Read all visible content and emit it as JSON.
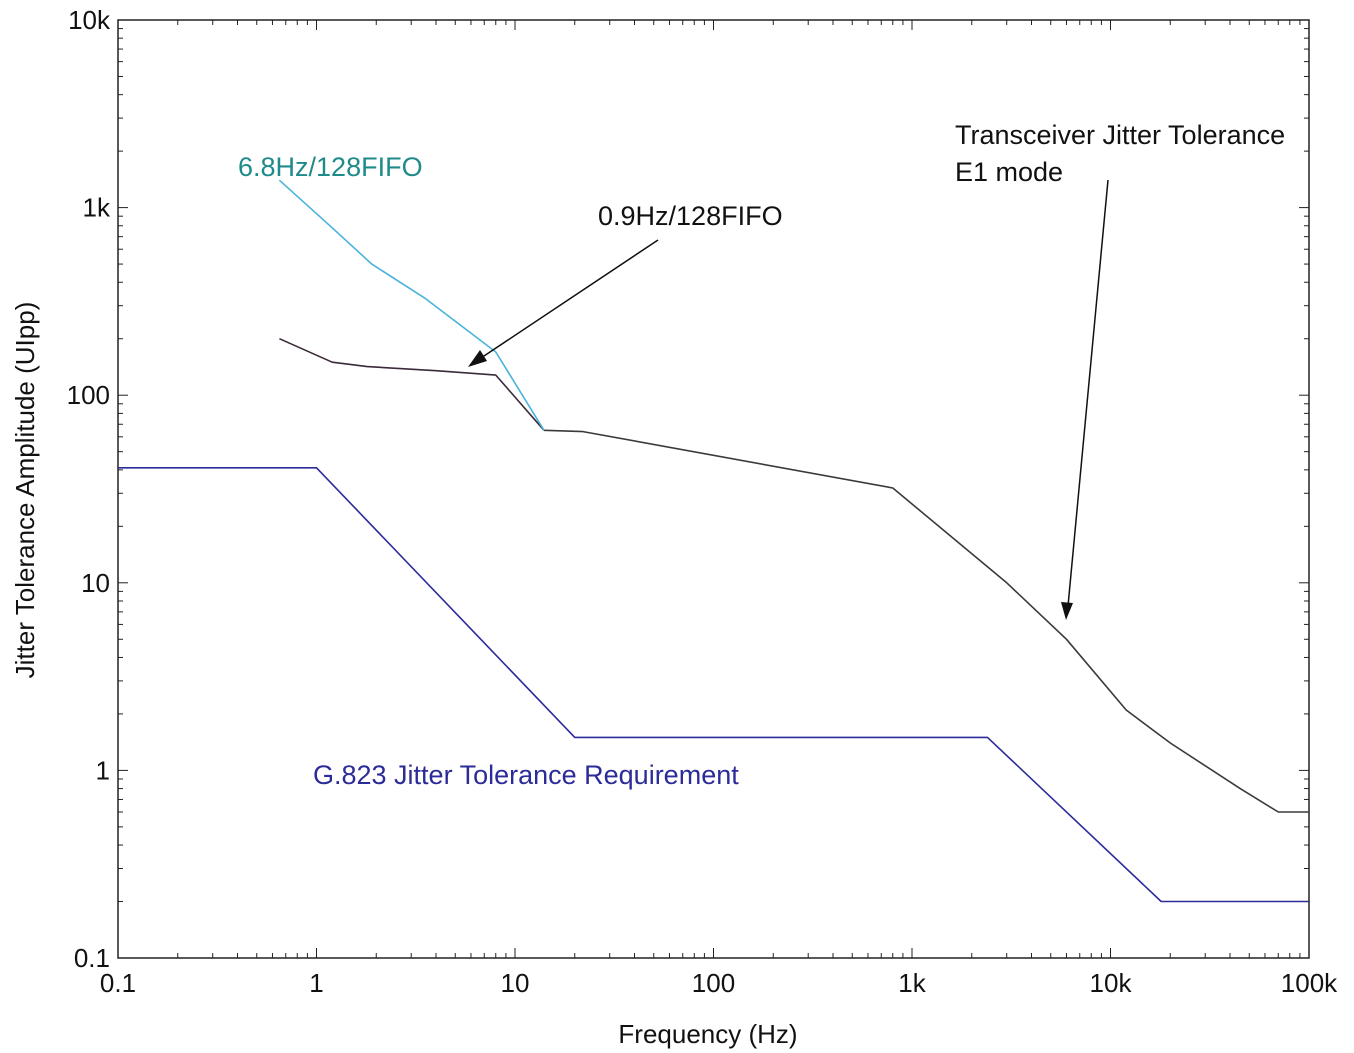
{
  "chart_data": {
    "type": "line",
    "title": "",
    "xlabel": "Frequency (Hz)",
    "ylabel": "Jitter Tolerance Amplitude (UIpp)",
    "x_scale": "log",
    "y_scale": "log",
    "xlim": [
      0.1,
      100000
    ],
    "ylim": [
      0.1,
      10000
    ],
    "x_ticks": [
      {
        "value": 0.1,
        "label": "0.1"
      },
      {
        "value": 1,
        "label": "1"
      },
      {
        "value": 10,
        "label": "10"
      },
      {
        "value": 100,
        "label": "100"
      },
      {
        "value": 1000,
        "label": "1k"
      },
      {
        "value": 10000,
        "label": "10k"
      },
      {
        "value": 100000,
        "label": "100k"
      }
    ],
    "y_ticks": [
      {
        "value": 0.1,
        "label": "0.1"
      },
      {
        "value": 1,
        "label": "1"
      },
      {
        "value": 10,
        "label": "10"
      },
      {
        "value": 100,
        "label": "100"
      },
      {
        "value": 1000,
        "label": "1k"
      },
      {
        "value": 10000,
        "label": "10k"
      }
    ],
    "grid": false,
    "series": [
      {
        "name": "G.823 Jitter Tolerance Requirement",
        "color": "#2b2b9a",
        "points": [
          [
            0.1,
            41
          ],
          [
            1,
            41
          ],
          [
            20,
            1.5
          ],
          [
            2400,
            1.5
          ],
          [
            18000,
            0.2
          ],
          [
            100000,
            0.2
          ]
        ]
      },
      {
        "name": "Transceiver Jitter Tolerance E1 mode",
        "color": "#3a3a3a",
        "points": [
          [
            14,
            65
          ],
          [
            22,
            64
          ],
          [
            800,
            32
          ],
          [
            3000,
            10
          ],
          [
            6000,
            5
          ],
          [
            12000,
            2.1
          ],
          [
            20000,
            1.4
          ],
          [
            45000,
            0.8
          ],
          [
            70000,
            0.6
          ],
          [
            100000,
            0.6
          ]
        ]
      },
      {
        "name": "0.9Hz/128FIFO",
        "color": "#3a2a3a",
        "points": [
          [
            0.65,
            200
          ],
          [
            1.2,
            150
          ],
          [
            1.8,
            142
          ],
          [
            4,
            135
          ],
          [
            8,
            128
          ],
          [
            14,
            65
          ]
        ]
      },
      {
        "name": "6.8Hz/128FIFO",
        "color": "#49b3dc",
        "points": [
          [
            0.65,
            1400
          ],
          [
            1.2,
            780
          ],
          [
            1.9,
            500
          ],
          [
            3.5,
            330
          ],
          [
            8,
            170
          ],
          [
            14,
            65
          ]
        ]
      }
    ],
    "annotations": [
      {
        "id": "cyan",
        "text": "6.8Hz/128FIFO",
        "color": "#1f8a8a"
      },
      {
        "id": "black",
        "text": "0.9Hz/128FIFO",
        "color": "#111111"
      },
      {
        "id": "trans1",
        "text": "Transceiver Jitter Tolerance",
        "color": "#111111"
      },
      {
        "id": "trans2",
        "text": "E1 mode",
        "color": "#111111"
      },
      {
        "id": "g823",
        "text": "G.823 Jitter Tolerance Requirement",
        "color": "#2b2b9a"
      }
    ]
  }
}
